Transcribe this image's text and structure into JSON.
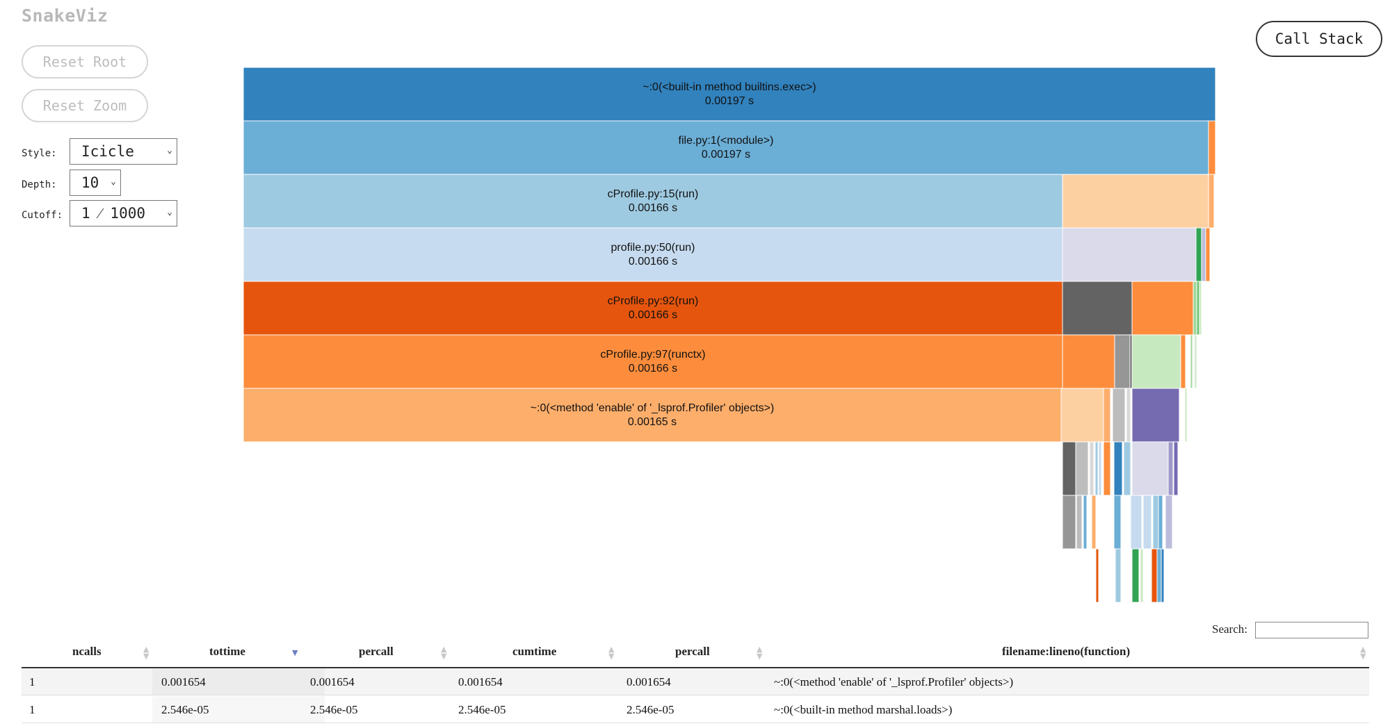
{
  "app_title": "SnakeViz",
  "buttons": {
    "reset_root": "Reset Root",
    "reset_zoom": "Reset Zoom",
    "call_stack": "Call Stack"
  },
  "controls": {
    "style_label": "Style:",
    "style_value": "Icicle",
    "depth_label": "Depth:",
    "depth_value": "10",
    "cutoff_label": "Cutoff:",
    "cutoff_value": "1 ⁄ 1000"
  },
  "icicle": {
    "frames": [
      {
        "name": "~:0(<built-in method builtins.exec>)",
        "time": "0.00197 s",
        "color": "#3182bd"
      },
      {
        "name": "file.py:1(<module>)",
        "time": "0.00197 s",
        "color": "#6baed6"
      },
      {
        "name": "cProfile.py:15(run)",
        "time": "0.00166 s",
        "color": "#9ecae1"
      },
      {
        "name": "profile.py:50(run)",
        "time": "0.00166 s",
        "color": "#c6dbef"
      },
      {
        "name": "cProfile.py:92(run)",
        "time": "0.00166 s",
        "color": "#e6550d"
      },
      {
        "name": "cProfile.py:97(runctx)",
        "time": "0.00166 s",
        "color": "#fd8d3c"
      },
      {
        "name": "~:0(<method 'enable' of '_lsprof.Profiler' objects>)",
        "time": "0.00165 s",
        "color": "#fdae6b"
      }
    ]
  },
  "search": {
    "label": "Search:",
    "value": ""
  },
  "table": {
    "columns": [
      "ncalls",
      "tottime",
      "percall",
      "cumtime",
      "percall",
      "filename:lineno(function)"
    ],
    "sorted_column": "tottime",
    "rows": [
      [
        "1",
        "0.001654",
        "0.001654",
        "0.001654",
        "0.001654",
        "~:0(<method 'enable' of '_lsprof.Profiler' objects>)"
      ],
      [
        "1",
        "2.546e-05",
        "2.546e-05",
        "2.546e-05",
        "2.546e-05",
        "~:0(<built-in method marshal.loads>)"
      ]
    ]
  }
}
